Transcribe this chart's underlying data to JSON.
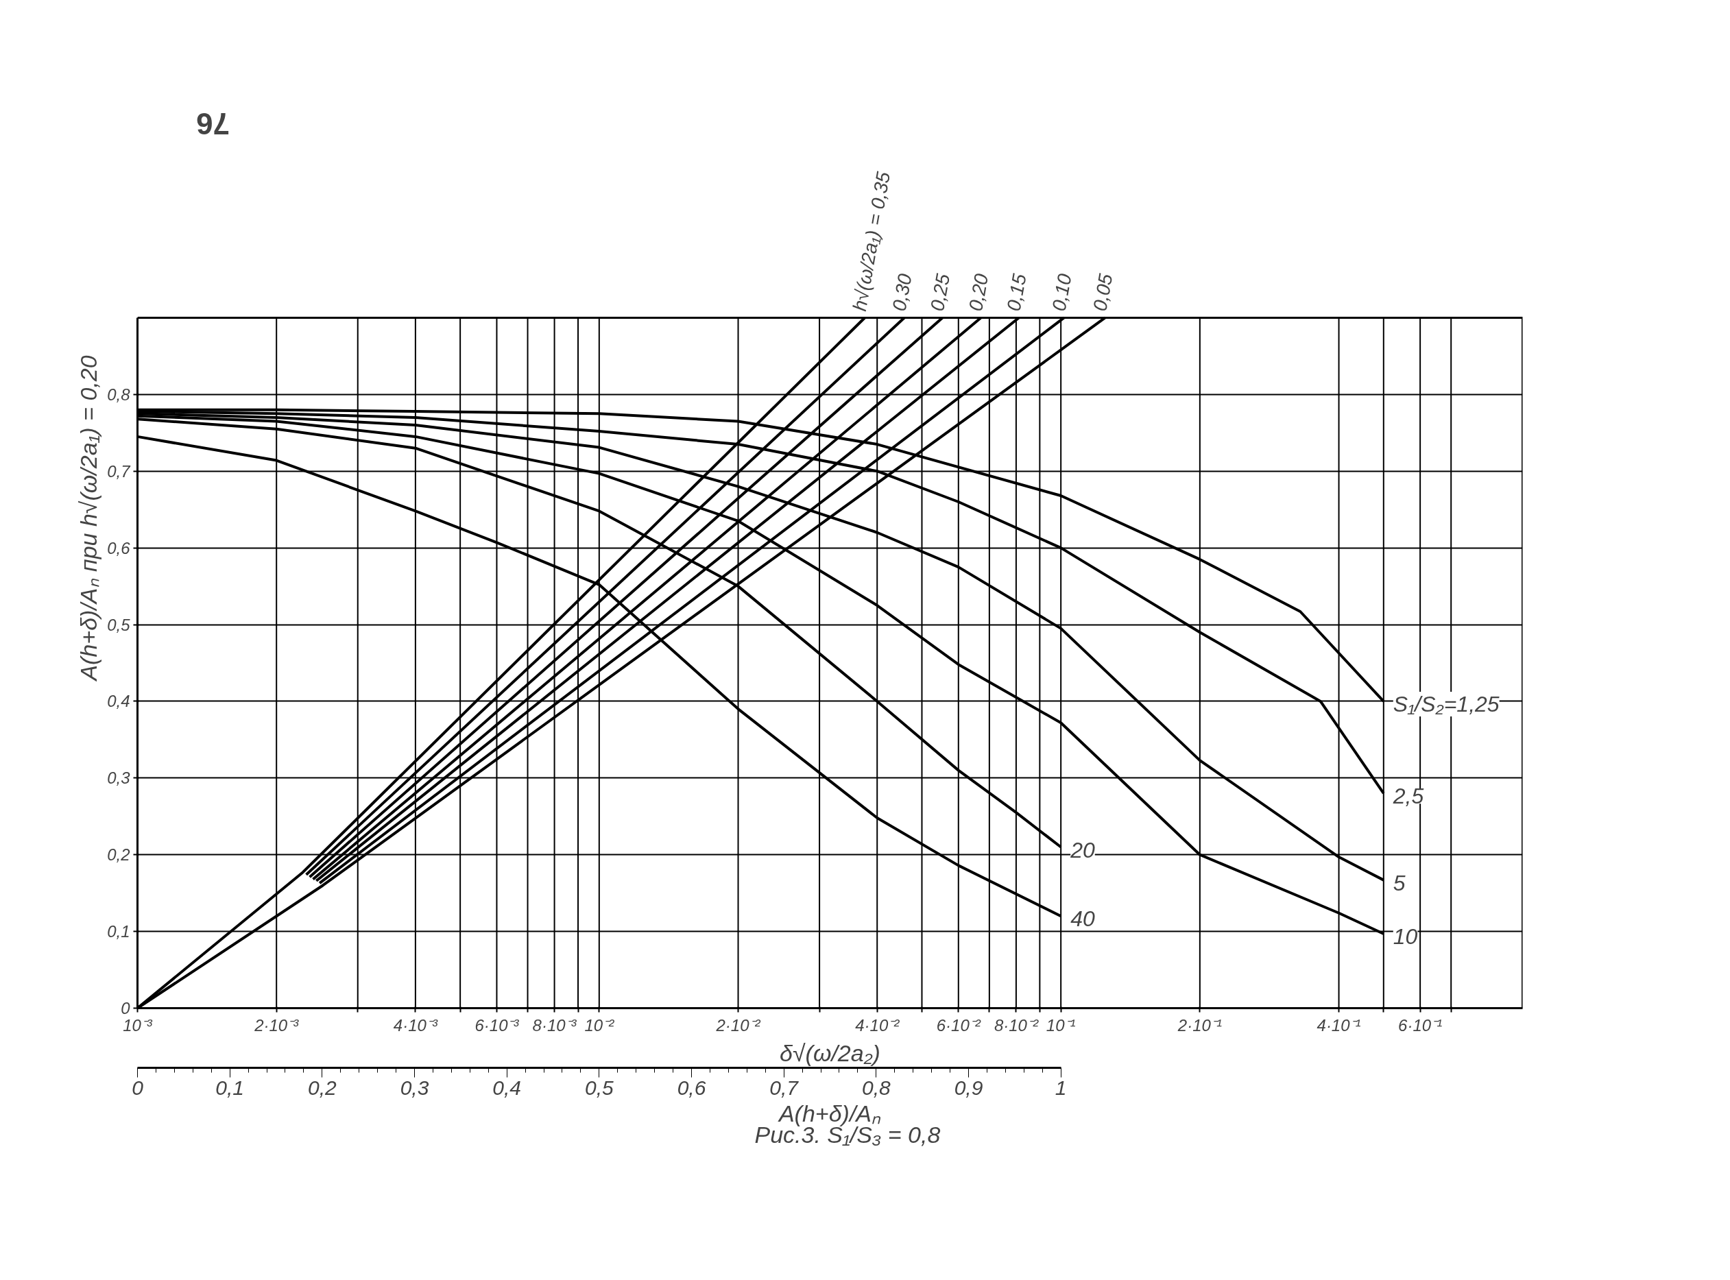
{
  "chart_data": {
    "type": "line",
    "ylabel": "A(h+δ)/Aₙ при h√(ω/2a₁) = 0,20",
    "xlabel": "δ√(ω/2a₂)",
    "x2label": "A(h+δ)/Aₙ",
    "annotations": [
      "Рис.3.  S₁/S₃ = 0,8",
      "76"
    ],
    "log": "x",
    "grid": true,
    "xlim": [
      0.001,
      1
    ],
    "ylim": [
      0,
      0.9
    ],
    "xticks": [
      {
        "value": 0.001,
        "label": "10⁻³"
      },
      {
        "value": 0.002,
        "label": "2·10⁻³"
      },
      {
        "value": 0.003,
        "label": null
      },
      {
        "value": 0.004,
        "label": "4·10⁻³"
      },
      {
        "value": 0.005,
        "label": null
      },
      {
        "value": 0.006,
        "label": "6·10⁻³"
      },
      {
        "value": 0.007,
        "label": null
      },
      {
        "value": 0.008,
        "label": "8·10⁻³"
      },
      {
        "value": 0.009,
        "label": null
      },
      {
        "value": 0.01,
        "label": "10⁻²"
      },
      {
        "value": 0.02,
        "label": "2·10⁻²"
      },
      {
        "value": 0.03,
        "label": null
      },
      {
        "value": 0.04,
        "label": "4·10⁻²"
      },
      {
        "value": 0.05,
        "label": null
      },
      {
        "value": 0.06,
        "label": "6·10⁻²"
      },
      {
        "value": 0.07,
        "label": null
      },
      {
        "value": 0.08,
        "label": "8·10⁻²"
      },
      {
        "value": 0.09,
        "label": null
      },
      {
        "value": 0.1,
        "label": "10⁻¹"
      },
      {
        "value": 0.2,
        "label": "2·10⁻¹"
      },
      {
        "value": 0.4,
        "label": "4·10⁻¹"
      },
      {
        "value": 0.5,
        "label": null
      },
      {
        "value": 0.6,
        "label": "6·10⁻¹"
      },
      {
        "value": 0.7,
        "label": null
      }
    ],
    "yticks": [
      {
        "value": 0,
        "label": "0"
      },
      {
        "value": 0.1,
        "label": "0,1"
      },
      {
        "value": 0.2,
        "label": "0,2"
      },
      {
        "value": 0.3,
        "label": "0,3"
      },
      {
        "value": 0.4,
        "label": "0,4"
      },
      {
        "value": 0.5,
        "label": "0,5"
      },
      {
        "value": 0.6,
        "label": "0,6"
      },
      {
        "value": 0.7,
        "label": "0,7"
      },
      {
        "value": 0.8,
        "label": "0,8"
      }
    ],
    "x2lim": [
      0,
      1
    ],
    "x2ticks": [
      {
        "value": 0,
        "label": "0"
      },
      {
        "value": 0.1,
        "label": "0,1"
      },
      {
        "value": 0.2,
        "label": "0,2"
      },
      {
        "value": 0.3,
        "label": "0,3"
      },
      {
        "value": 0.4,
        "label": "0,4"
      },
      {
        "value": 0.5,
        "label": "0,5"
      },
      {
        "value": 0.6,
        "label": "0,6"
      },
      {
        "value": 0.7,
        "label": "0,7"
      },
      {
        "value": 0.8,
        "label": "0,8"
      },
      {
        "value": 0.9,
        "label": "0,9"
      },
      {
        "value": 1,
        "label": "1"
      }
    ],
    "series": [
      {
        "name": "S₁/S₂=1,25",
        "color": "#000000",
        "x": [
          0.001,
          0.002,
          0.004,
          0.01,
          0.02,
          0.04,
          0.1,
          0.2,
          0.33,
          0.5
        ],
        "values": [
          0.78,
          0.78,
          0.778,
          0.775,
          0.765,
          0.735,
          0.668,
          0.585,
          0.517,
          0.4
        ]
      },
      {
        "name": "2,5",
        "color": "#000000",
        "x": [
          0.001,
          0.002,
          0.004,
          0.01,
          0.02,
          0.04,
          0.06,
          0.1,
          0.2,
          0.365,
          0.5
        ],
        "values": [
          0.778,
          0.775,
          0.77,
          0.752,
          0.735,
          0.7,
          0.66,
          0.6,
          0.49,
          0.4,
          0.28
        ]
      },
      {
        "name": "5",
        "color": "#000000",
        "x": [
          0.001,
          0.002,
          0.004,
          0.01,
          0.02,
          0.04,
          0.06,
          0.1,
          0.2,
          0.4,
          0.5
        ],
        "values": [
          0.775,
          0.77,
          0.76,
          0.731,
          0.68,
          0.62,
          0.575,
          0.495,
          0.323,
          0.197,
          0.167
        ]
      },
      {
        "name": "10",
        "color": "#000000",
        "x": [
          0.001,
          0.002,
          0.004,
          0.01,
          0.02,
          0.04,
          0.06,
          0.1,
          0.2,
          0.4,
          0.5
        ],
        "values": [
          0.772,
          0.765,
          0.745,
          0.697,
          0.635,
          0.525,
          0.448,
          0.372,
          0.2,
          0.124,
          0.097
        ]
      },
      {
        "name": "20",
        "color": "#000000",
        "x": [
          0.001,
          0.002,
          0.004,
          0.01,
          0.02,
          0.04,
          0.06,
          0.08,
          0.1
        ],
        "values": [
          0.768,
          0.755,
          0.73,
          0.648,
          0.55,
          0.4,
          0.31,
          0.255,
          0.21
        ]
      },
      {
        "name": "40",
        "color": "#000000",
        "x": [
          0.001,
          0.002,
          0.004,
          0.006,
          0.01,
          0.02,
          0.04,
          0.06,
          0.1
        ],
        "values": [
          0.745,
          0.714,
          0.648,
          0.607,
          0.552,
          0.39,
          0.248,
          0.186,
          0.12
        ]
      },
      {
        "name": "h√(ω/2a₁) = 0,35",
        "color": "#000000",
        "x": [
          0.001,
          0.00228,
          0.0376
        ],
        "values": [
          0,
          0.177,
          0.9
        ]
      },
      {
        "name": "0,30",
        "color": "#000000",
        "x": [
          0.00232,
          0.0458
        ],
        "values": [
          0.174,
          0.9
        ]
      },
      {
        "name": "0,25",
        "color": "#000000",
        "x": [
          0.00236,
          0.0554
        ],
        "values": [
          0.171,
          0.9
        ]
      },
      {
        "name": "0,20",
        "color": "#000000",
        "x": [
          0.0024,
          0.0671
        ],
        "values": [
          0.168,
          0.9
        ]
      },
      {
        "name": "0,15",
        "color": "#000000",
        "x": [
          0.00244,
          0.0811
        ],
        "values": [
          0.166,
          0.9
        ]
      },
      {
        "name": "0,10",
        "color": "#000000",
        "x": [
          0.00248,
          0.1016
        ],
        "values": [
          0.163,
          0.9
        ]
      },
      {
        "name": "0,05",
        "color": "#000000",
        "x": [
          0.001,
          0.00252,
          0.1247
        ],
        "values": [
          0,
          0.16,
          0.9
        ]
      }
    ]
  }
}
